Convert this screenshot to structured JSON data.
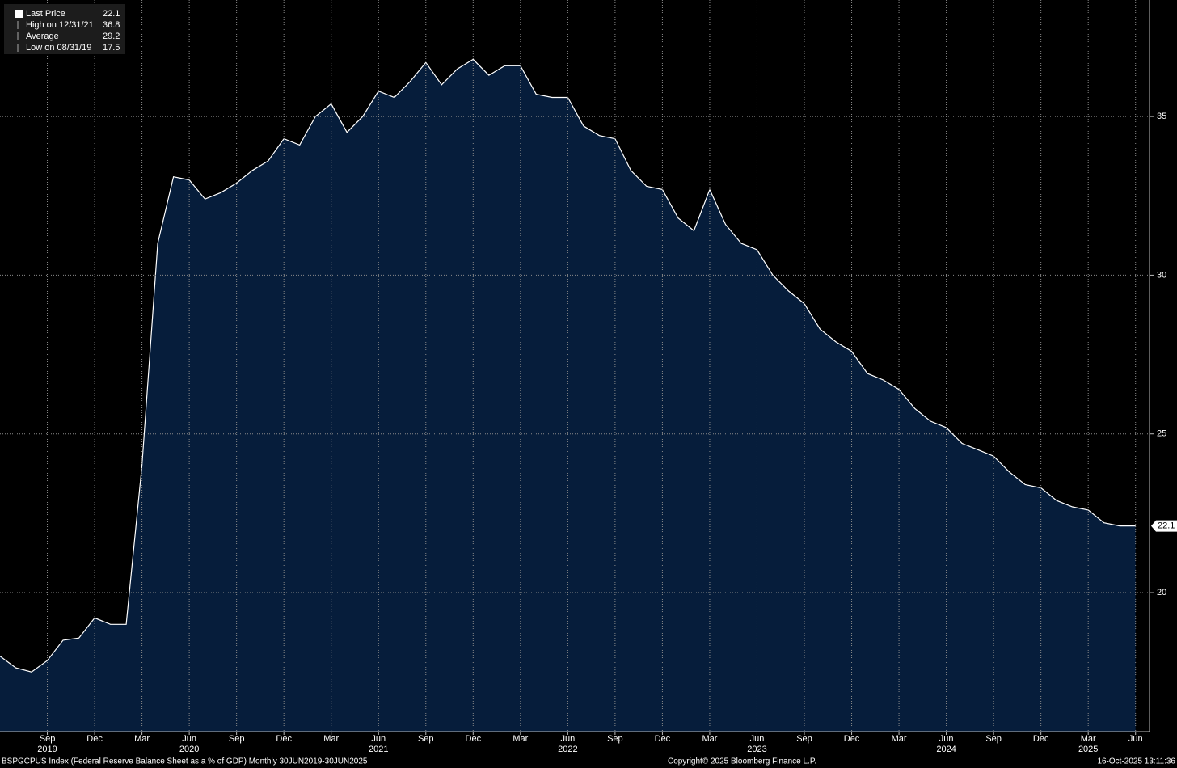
{
  "chart_data": {
    "type": "area",
    "series": [
      {
        "name": "Last Price",
        "color": "#ffffff",
        "fill": "#061d3b",
        "values": [
          18.0,
          17.63,
          17.5,
          17.86,
          18.5,
          18.57,
          19.2,
          19.0,
          19.0,
          24.0,
          31.0,
          33.1,
          33.0,
          32.4,
          32.6,
          32.9,
          33.3,
          33.6,
          34.3,
          34.1,
          35.0,
          35.4,
          34.5,
          35.0,
          35.8,
          35.6,
          36.1,
          36.7,
          36.0,
          36.5,
          36.8,
          36.3,
          36.6,
          36.6,
          35.7,
          35.6,
          35.6,
          34.7,
          34.4,
          34.3,
          33.3,
          32.8,
          32.7,
          31.8,
          31.4,
          32.7,
          31.6,
          31.0,
          30.8,
          30.0,
          29.5,
          29.1,
          28.3,
          27.9,
          27.6,
          26.9,
          26.7,
          26.4,
          25.8,
          25.4,
          25.2,
          24.7,
          24.5,
          24.3,
          23.8,
          23.4,
          23.3,
          22.9,
          22.7,
          22.6,
          22.2,
          22.1,
          22.1
        ]
      }
    ],
    "x": [
      "2019-06",
      "2019-07",
      "2019-08",
      "2019-09",
      "2019-10",
      "2019-11",
      "2019-12",
      "2020-01",
      "2020-02",
      "2020-03",
      "2020-04",
      "2020-05",
      "2020-06",
      "2020-07",
      "2020-08",
      "2020-09",
      "2020-10",
      "2020-11",
      "2020-12",
      "2021-01",
      "2021-02",
      "2021-03",
      "2021-04",
      "2021-05",
      "2021-06",
      "2021-07",
      "2021-08",
      "2021-09",
      "2021-10",
      "2021-11",
      "2021-12",
      "2022-01",
      "2022-02",
      "2022-03",
      "2022-04",
      "2022-05",
      "2022-06",
      "2022-07",
      "2022-08",
      "2022-09",
      "2022-10",
      "2022-11",
      "2022-12",
      "2023-01",
      "2023-02",
      "2023-03",
      "2023-04",
      "2023-05",
      "2023-06",
      "2023-07",
      "2023-08",
      "2023-09",
      "2023-10",
      "2023-11",
      "2023-12",
      "2024-01",
      "2024-02",
      "2024-03",
      "2024-04",
      "2024-05",
      "2024-06",
      "2024-07",
      "2024-08",
      "2024-09",
      "2024-10",
      "2024-11",
      "2024-12",
      "2025-01",
      "2025-02",
      "2025-03",
      "2025-04",
      "2025-05",
      "2025-06"
    ],
    "xticks": [
      {
        "value": "2019-09",
        "label": "Sep"
      },
      {
        "value": "2019-12",
        "label": "Dec"
      },
      {
        "value": "2020-03",
        "label": "Mar"
      },
      {
        "value": "2020-06",
        "label": "Jun"
      },
      {
        "value": "2020-09",
        "label": "Sep"
      },
      {
        "value": "2020-12",
        "label": "Dec"
      },
      {
        "value": "2021-03",
        "label": "Mar"
      },
      {
        "value": "2021-06",
        "label": "Jun"
      },
      {
        "value": "2021-09",
        "label": "Sep"
      },
      {
        "value": "2021-12",
        "label": "Dec"
      },
      {
        "value": "2022-03",
        "label": "Mar"
      },
      {
        "value": "2022-06",
        "label": "Jun"
      },
      {
        "value": "2022-09",
        "label": "Sep"
      },
      {
        "value": "2022-12",
        "label": "Dec"
      },
      {
        "value": "2023-03",
        "label": "Mar"
      },
      {
        "value": "2023-06",
        "label": "Jun"
      },
      {
        "value": "2023-09",
        "label": "Sep"
      },
      {
        "value": "2023-12",
        "label": "Dec"
      },
      {
        "value": "2024-03",
        "label": "Mar"
      },
      {
        "value": "2024-06",
        "label": "Jun"
      },
      {
        "value": "2024-09",
        "label": "Sep"
      },
      {
        "value": "2024-12",
        "label": "Dec"
      },
      {
        "value": "2025-03",
        "label": "Mar"
      },
      {
        "value": "2025-06",
        "label": "Jun"
      }
    ],
    "year_labels": [
      {
        "value": "2019-09",
        "label": "2019"
      },
      {
        "value": "2020-06",
        "label": "2020"
      },
      {
        "value": "2021-06",
        "label": "2021"
      },
      {
        "value": "2022-06",
        "label": "2022"
      },
      {
        "value": "2023-06",
        "label": "2023"
      },
      {
        "value": "2024-06",
        "label": "2024"
      },
      {
        "value": "2025-03",
        "label": "2025"
      }
    ],
    "ylim": [
      15.62,
      38.67
    ],
    "yticks": [
      20,
      25,
      30,
      35
    ],
    "grid": true,
    "stats": [
      {
        "label": "Last Price",
        "value": 22.1
      },
      {
        "label": "High on 12/31/21",
        "value": 36.8
      },
      {
        "label": "Average",
        "value": 29.2
      },
      {
        "label": "Low on 08/31/19",
        "value": 17.5
      }
    ],
    "footer_left": "BSPGCPUS Index (Federal Reserve Balance Sheet as a % of GDP) Monthly 30JUN2019-30JUN2025",
    "footer_center": "Copyright© 2025 Bloomberg Finance L.P.",
    "footer_right": "16-Oct-2025 13:11:36"
  }
}
